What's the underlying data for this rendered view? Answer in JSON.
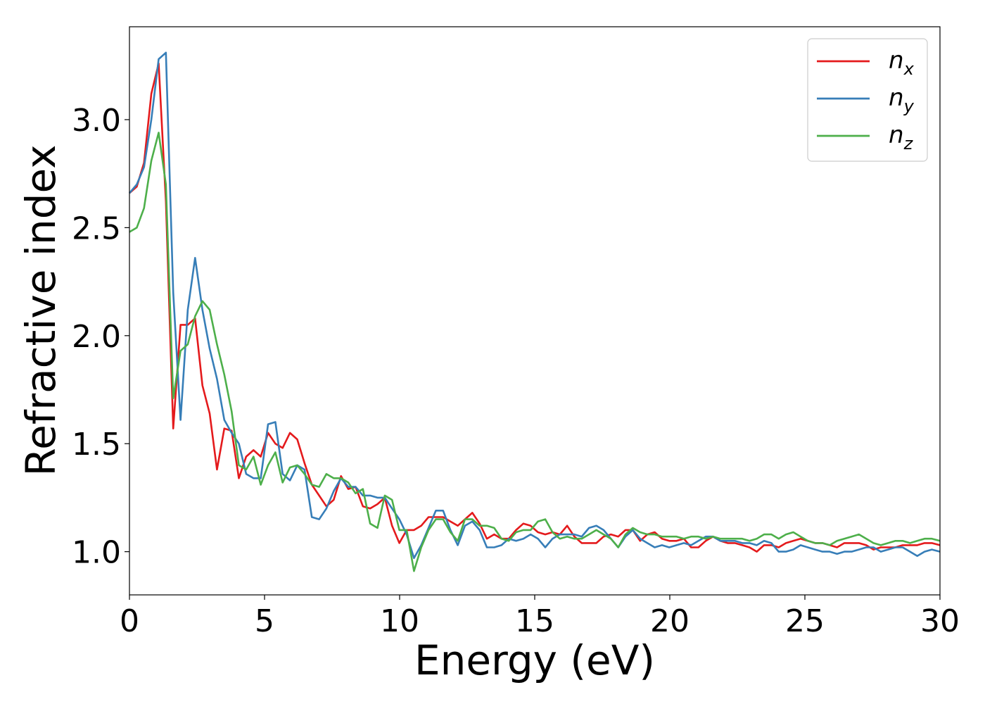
{
  "chart_data": {
    "type": "line",
    "title": "",
    "xlabel": "Energy (eV)",
    "ylabel": "Refractive index",
    "xlim": [
      0,
      30
    ],
    "ylim": [
      0.8,
      3.43
    ],
    "xticks": [
      0,
      5,
      10,
      15,
      20,
      25,
      30
    ],
    "xtick_labels": [
      "0",
      "5",
      "10",
      "15",
      "20",
      "25",
      "30"
    ],
    "yticks": [
      1.0,
      1.5,
      2.0,
      2.5,
      3.0
    ],
    "ytick_labels": [
      "1.0",
      "1.5",
      "2.0",
      "2.5",
      "3.0"
    ],
    "grid": false,
    "legend_position": "top-right",
    "x": [
      0,
      0.27,
      0.54,
      0.81,
      1.08,
      1.35,
      1.62,
      1.89,
      2.16,
      2.43,
      2.7,
      2.97,
      3.24,
      3.51,
      3.78,
      4.05,
      4.32,
      4.59,
      4.86,
      5.13,
      5.4,
      5.67,
      5.94,
      6.21,
      6.48,
      6.75,
      7.02,
      7.29,
      7.56,
      7.83,
      8.1,
      8.37,
      8.64,
      8.91,
      9.18,
      9.45,
      9.72,
      9.99,
      10.26,
      10.53,
      10.8,
      11.07,
      11.34,
      11.61,
      11.88,
      12.15,
      12.42,
      12.69,
      12.96,
      13.23,
      13.5,
      13.77,
      14.04,
      14.31,
      14.58,
      14.85,
      15.12,
      15.39,
      15.66,
      15.93,
      16.2,
      16.47,
      16.74,
      17.01,
      17.28,
      17.55,
      17.82,
      18.09,
      18.36,
      18.63,
      18.9,
      19.17,
      19.44,
      19.71,
      19.98,
      20.25,
      20.52,
      20.79,
      21.06,
      21.33,
      21.6,
      21.87,
      22.14,
      22.41,
      22.68,
      22.95,
      23.22,
      23.49,
      23.76,
      24.03,
      24.3,
      24.57,
      24.84,
      25.11,
      25.38,
      25.65,
      25.92,
      26.19,
      26.46,
      26.73,
      27.0,
      27.27,
      27.54,
      27.81,
      28.08,
      28.35,
      28.62,
      28.89,
      29.16,
      29.43,
      29.7,
      30.0
    ],
    "series": [
      {
        "name": "n",
        "subscript": "x",
        "color": "#e41a1c",
        "values": [
          2.66,
          2.69,
          2.8,
          3.12,
          3.26,
          2.62,
          1.57,
          2.05,
          2.05,
          2.08,
          1.77,
          1.64,
          1.38,
          1.57,
          1.56,
          1.34,
          1.44,
          1.47,
          1.44,
          1.55,
          1.5,
          1.48,
          1.55,
          1.52,
          1.41,
          1.31,
          1.26,
          1.21,
          1.24,
          1.35,
          1.29,
          1.3,
          1.21,
          1.2,
          1.22,
          1.25,
          1.12,
          1.04,
          1.1,
          1.1,
          1.12,
          1.16,
          1.16,
          1.16,
          1.14,
          1.12,
          1.15,
          1.18,
          1.13,
          1.06,
          1.08,
          1.06,
          1.06,
          1.1,
          1.13,
          1.12,
          1.09,
          1.08,
          1.09,
          1.08,
          1.12,
          1.07,
          1.04,
          1.04,
          1.04,
          1.07,
          1.08,
          1.07,
          1.1,
          1.1,
          1.05,
          1.08,
          1.09,
          1.06,
          1.05,
          1.05,
          1.06,
          1.02,
          1.02,
          1.05,
          1.07,
          1.05,
          1.04,
          1.04,
          1.03,
          1.02,
          1.0,
          1.03,
          1.03,
          1.02,
          1.04,
          1.05,
          1.06,
          1.05,
          1.04,
          1.04,
          1.03,
          1.02,
          1.04,
          1.04,
          1.04,
          1.03,
          1.01,
          1.02,
          1.02,
          1.02,
          1.03,
          1.03,
          1.03,
          1.04,
          1.04,
          1.03
        ]
      },
      {
        "name": "n",
        "subscript": "y",
        "color": "#377eb8",
        "values": [
          2.66,
          2.7,
          2.78,
          3.0,
          3.28,
          3.31,
          2.2,
          1.61,
          2.12,
          2.36,
          2.12,
          1.94,
          1.8,
          1.61,
          1.55,
          1.5,
          1.36,
          1.34,
          1.34,
          1.59,
          1.6,
          1.36,
          1.33,
          1.4,
          1.38,
          1.16,
          1.15,
          1.2,
          1.28,
          1.34,
          1.3,
          1.3,
          1.26,
          1.26,
          1.25,
          1.25,
          1.2,
          1.15,
          1.08,
          0.97,
          1.03,
          1.11,
          1.19,
          1.19,
          1.1,
          1.03,
          1.12,
          1.14,
          1.1,
          1.02,
          1.02,
          1.03,
          1.06,
          1.05,
          1.06,
          1.08,
          1.06,
          1.02,
          1.06,
          1.08,
          1.08,
          1.08,
          1.07,
          1.11,
          1.12,
          1.1,
          1.06,
          1.02,
          1.07,
          1.1,
          1.06,
          1.04,
          1.02,
          1.03,
          1.02,
          1.03,
          1.04,
          1.03,
          1.05,
          1.07,
          1.07,
          1.05,
          1.05,
          1.05,
          1.04,
          1.04,
          1.03,
          1.05,
          1.04,
          1.0,
          1.0,
          1.01,
          1.03,
          1.02,
          1.01,
          1.0,
          1.0,
          0.99,
          1.0,
          1.0,
          1.01,
          1.02,
          1.02,
          1.0,
          1.01,
          1.02,
          1.02,
          1.0,
          0.98,
          1.0,
          1.01,
          1.0
        ]
      },
      {
        "name": "n",
        "subscript": "z",
        "color": "#4daf4a",
        "values": [
          2.48,
          2.5,
          2.59,
          2.81,
          2.94,
          2.7,
          1.71,
          1.93,
          1.96,
          2.09,
          2.16,
          2.12,
          1.96,
          1.82,
          1.65,
          1.4,
          1.38,
          1.44,
          1.31,
          1.4,
          1.46,
          1.32,
          1.39,
          1.4,
          1.36,
          1.31,
          1.3,
          1.36,
          1.34,
          1.34,
          1.32,
          1.27,
          1.29,
          1.13,
          1.11,
          1.26,
          1.24,
          1.1,
          1.1,
          0.91,
          1.02,
          1.1,
          1.15,
          1.15,
          1.09,
          1.05,
          1.15,
          1.15,
          1.12,
          1.12,
          1.11,
          1.06,
          1.05,
          1.09,
          1.1,
          1.1,
          1.14,
          1.15,
          1.09,
          1.06,
          1.07,
          1.06,
          1.06,
          1.08,
          1.1,
          1.08,
          1.06,
          1.02,
          1.08,
          1.11,
          1.09,
          1.08,
          1.08,
          1.07,
          1.07,
          1.07,
          1.06,
          1.07,
          1.07,
          1.06,
          1.07,
          1.06,
          1.06,
          1.06,
          1.06,
          1.05,
          1.06,
          1.08,
          1.08,
          1.06,
          1.08,
          1.09,
          1.07,
          1.05,
          1.04,
          1.04,
          1.03,
          1.05,
          1.06,
          1.07,
          1.08,
          1.06,
          1.04,
          1.03,
          1.04,
          1.05,
          1.05,
          1.04,
          1.05,
          1.06,
          1.06,
          1.05
        ]
      }
    ]
  }
}
